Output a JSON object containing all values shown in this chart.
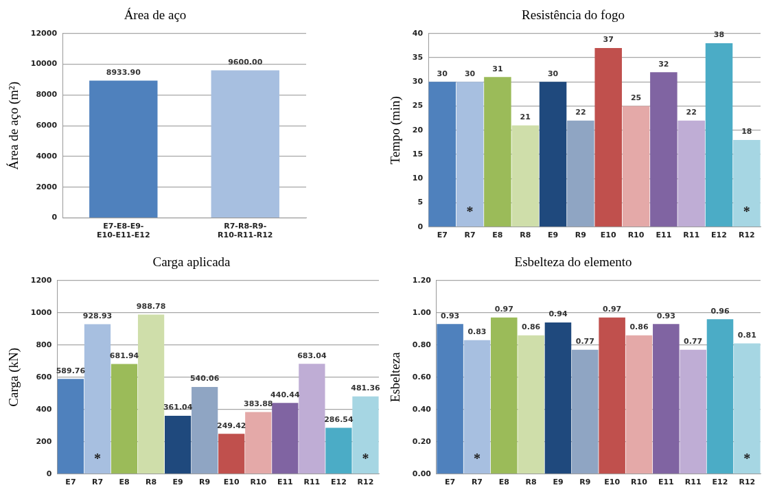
{
  "chart_data": [
    {
      "type": "bar",
      "title": "Área de aço",
      "ylabel": "Área de aço (m²)",
      "categories": [
        "E7-E8-E9-E10-E11-E12",
        "R7-R8-R9-R10-R11-R12"
      ],
      "values": [
        8933.9,
        9600
      ],
      "colors": [
        "#4f81bd",
        "#a7bfe0"
      ],
      "value_labels": [
        "8933.90",
        "9600.00"
      ],
      "ylim": [
        0,
        12000
      ],
      "yticks": [
        0,
        2000,
        4000,
        6000,
        8000,
        10000,
        12000
      ],
      "grid": "y",
      "legend": false
    },
    {
      "type": "bar",
      "title": "Resistência do fogo",
      "ylabel": "Tempo (min)",
      "categories": [
        "E7",
        "R7",
        "E8",
        "R8",
        "E9",
        "R9",
        "E10",
        "R10",
        "E11",
        "R11",
        "E12",
        "R12"
      ],
      "values": [
        30,
        30,
        31,
        21,
        30,
        22,
        37,
        25,
        32,
        22,
        38,
        18
      ],
      "colors": [
        "#4f81bd",
        "#a7bfe0",
        "#9bbb59",
        "#cfdeaa",
        "#1f497d",
        "#8fa5c3",
        "#c0504d",
        "#e4a9a8",
        "#8064a2",
        "#bfadd5",
        "#4bacc6",
        "#a6d6e3"
      ],
      "data_labels": true,
      "ylim": [
        0,
        40
      ],
      "yticks": [
        0,
        5,
        10,
        15,
        20,
        25,
        30,
        35,
        40
      ],
      "grid": "y",
      "legend": false,
      "annotations": [
        "*",
        "*"
      ]
    },
    {
      "type": "bar",
      "title": "Carga aplicada",
      "ylabel": "Carga (kN)",
      "categories": [
        "E7",
        "R7",
        "E8",
        "R8",
        "E9",
        "R9",
        "E10",
        "R10",
        "E11",
        "R11",
        "E12",
        "R12"
      ],
      "values": [
        589.76,
        928.93,
        681.94,
        988.78,
        361.04,
        540.06,
        249.42,
        383.88,
        440.44,
        683.04,
        286.54,
        481.36
      ],
      "colors": [
        "#4f81bd",
        "#a7bfe0",
        "#9bbb59",
        "#cfdeaa",
        "#1f497d",
        "#8fa5c3",
        "#c0504d",
        "#e4a9a8",
        "#8064a2",
        "#bfadd5",
        "#4bacc6",
        "#a6d6e3"
      ],
      "data_labels": true,
      "ylim": [
        0,
        1200
      ],
      "yticks": [
        0,
        200,
        400,
        600,
        800,
        1000,
        1200
      ],
      "grid": "y",
      "legend": false,
      "annotations": [
        "*",
        "*"
      ]
    },
    {
      "type": "bar",
      "title": "Esbelteza do elemento",
      "ylabel": "Esbelteza",
      "categories": [
        "E7",
        "R7",
        "E8",
        "R8",
        "E9",
        "R9",
        "E10",
        "R10",
        "E11",
        "R11",
        "E12",
        "R12"
      ],
      "values": [
        0.93,
        0.83,
        0.97,
        0.86,
        0.94,
        0.77,
        0.97,
        0.86,
        0.93,
        0.77,
        0.96,
        0.81
      ],
      "colors": [
        "#4f81bd",
        "#a7bfe0",
        "#9bbb59",
        "#cfdeaa",
        "#1f497d",
        "#8fa5c3",
        "#c0504d",
        "#e4a9a8",
        "#8064a2",
        "#bfadd5",
        "#4bacc6",
        "#a6d6e3"
      ],
      "data_labels": true,
      "ylim": [
        0,
        1.2
      ],
      "yticks": [
        {
          "value": 0,
          "label": "0.00"
        },
        {
          "value": 0.2,
          "label": "0.20"
        },
        {
          "value": 0.4,
          "label": "0.40"
        },
        {
          "value": 0.6,
          "label": "0.60"
        },
        {
          "value": 0.8,
          "label": "0.80"
        },
        {
          "value": 1,
          "label": "1.00"
        },
        {
          "value": 1.2,
          "label": "1.20"
        }
      ],
      "grid": "y",
      "legend": false,
      "annotations": [
        "*",
        "*"
      ]
    }
  ]
}
